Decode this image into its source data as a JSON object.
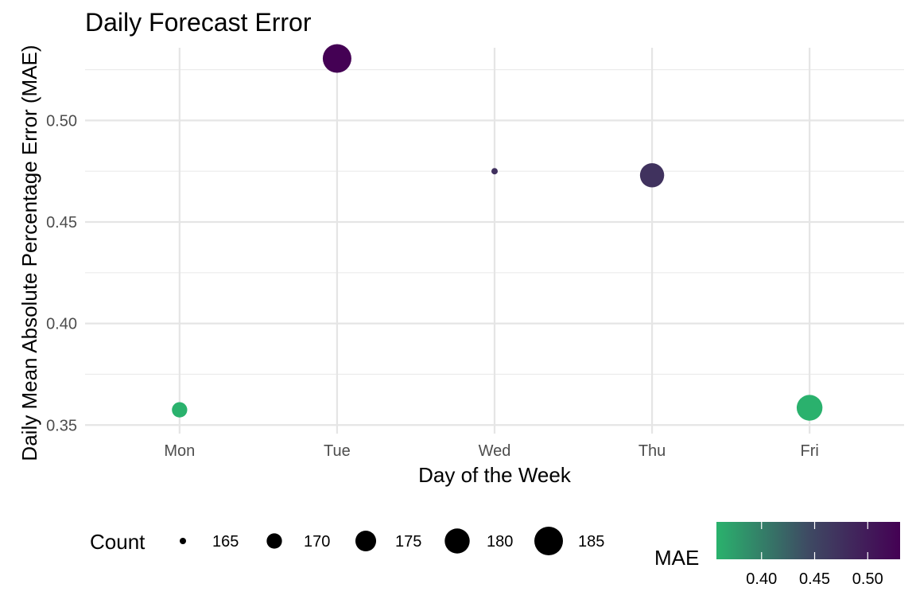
{
  "chart_data": {
    "type": "scatter",
    "title": "Daily Forecast Error",
    "xlabel": "Day of the Week",
    "ylabel": "Daily Mean Absolute Percentage Error (MAE)",
    "categories": [
      "Mon",
      "Tue",
      "Wed",
      "Thu",
      "Fri"
    ],
    "values": [
      0.3575,
      0.5305,
      0.475,
      0.473,
      0.3585
    ],
    "counts": [
      170,
      185,
      163,
      179,
      181
    ],
    "ylim": [
      0.3458,
      0.5358
    ],
    "y_ticks": [
      0.35,
      0.4,
      0.45,
      0.5
    ],
    "y_tick_labels": [
      "0.35",
      "0.40",
      "0.45",
      "0.50"
    ],
    "grid": true,
    "legend_position": "bottom",
    "size_legend": {
      "title": "Count",
      "breaks": [
        165,
        170,
        175,
        180,
        185
      ],
      "labels": [
        "165",
        "170",
        "175",
        "180",
        "185"
      ]
    },
    "color_legend": {
      "title": "MAE",
      "range": [
        0.3575,
        0.5305
      ],
      "breaks": [
        0.4,
        0.45,
        0.5
      ],
      "labels": [
        "0.40",
        "0.45",
        "0.50"
      ],
      "colors": [
        "#2ab26d",
        "#3e4a63",
        "#440154"
      ]
    }
  }
}
